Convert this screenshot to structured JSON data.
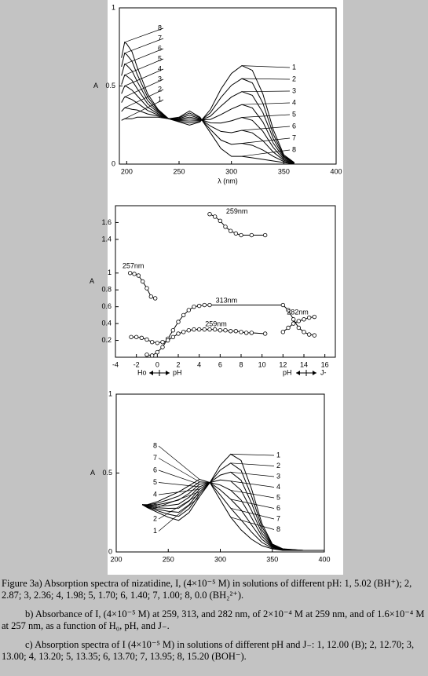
{
  "chart_data": [
    {
      "type": "line",
      "ylabel": "A",
      "xlabel": "λ (nm)",
      "color": "#000000",
      "xlim": [
        193,
        400
      ],
      "ylim": [
        0,
        1
      ],
      "xticks": [
        200,
        250,
        300,
        350,
        400
      ],
      "yticks": [
        0,
        0.5,
        1
      ],
      "x": [
        195,
        198,
        200,
        205,
        210,
        220,
        230,
        240,
        250,
        260,
        270,
        280,
        290,
        300,
        310,
        320,
        330,
        340,
        350,
        360
      ],
      "series": [
        {
          "name": "1",
          "values": [
            0.28,
            0.29,
            0.29,
            0.29,
            0.3,
            0.3,
            0.3,
            0.29,
            0.27,
            0.25,
            0.27,
            0.35,
            0.48,
            0.58,
            0.63,
            0.6,
            0.45,
            0.22,
            0.06,
            0.01
          ]
        },
        {
          "name": "2",
          "values": [
            0.337,
            0.36,
            0.359,
            0.351,
            0.346,
            0.321,
            0.307,
            0.29,
            0.274,
            0.263,
            0.274,
            0.329,
            0.426,
            0.504,
            0.547,
            0.52,
            0.39,
            0.191,
            0.053,
            0.009
          ]
        },
        {
          "name": "3",
          "values": [
            0.394,
            0.43,
            0.427,
            0.413,
            0.391,
            0.343,
            0.314,
            0.29,
            0.279,
            0.276,
            0.279,
            0.307,
            0.371,
            0.429,
            0.464,
            0.44,
            0.33,
            0.163,
            0.046,
            0.007
          ]
        },
        {
          "name": "4",
          "values": [
            0.451,
            0.5,
            0.496,
            0.474,
            0.437,
            0.364,
            0.321,
            0.29,
            0.283,
            0.289,
            0.283,
            0.286,
            0.317,
            0.353,
            0.381,
            0.36,
            0.27,
            0.134,
            0.039,
            0.006
          ]
        },
        {
          "name": "5",
          "values": [
            0.509,
            0.57,
            0.564,
            0.536,
            0.483,
            0.386,
            0.329,
            0.29,
            0.287,
            0.301,
            0.287,
            0.264,
            0.263,
            0.277,
            0.299,
            0.28,
            0.21,
            0.106,
            0.031,
            0.004
          ]
        },
        {
          "name": "6",
          "values": [
            0.566,
            0.64,
            0.633,
            0.597,
            0.529,
            0.407,
            0.336,
            0.29,
            0.291,
            0.314,
            0.291,
            0.243,
            0.209,
            0.201,
            0.216,
            0.2,
            0.15,
            0.077,
            0.024,
            0.003
          ]
        },
        {
          "name": "7",
          "values": [
            0.623,
            0.71,
            0.701,
            0.659,
            0.574,
            0.429,
            0.343,
            0.29,
            0.296,
            0.327,
            0.296,
            0.221,
            0.154,
            0.126,
            0.133,
            0.12,
            0.09,
            0.049,
            0.017,
            0.001
          ]
        },
        {
          "name": "8",
          "values": [
            0.68,
            0.78,
            0.77,
            0.72,
            0.62,
            0.45,
            0.35,
            0.29,
            0.3,
            0.34,
            0.3,
            0.2,
            0.1,
            0.05,
            0.05,
            0.04,
            0.03,
            0.02,
            0.01,
            0
          ]
        }
      ]
    },
    {
      "type": "scatter",
      "ylabel": "A",
      "color": "#000000",
      "connect": true,
      "xlim": [
        -4,
        17
      ],
      "ylim": [
        0,
        1.8
      ],
      "xticks": [
        -4,
        -2,
        0,
        2,
        4,
        6,
        8,
        10,
        12,
        14,
        16
      ],
      "yticks": [
        0.2,
        0.4,
        0.6,
        0.8,
        1.0,
        1.4,
        1.6
      ],
      "annotations": [
        "Ho",
        "pH",
        "pH",
        "J-"
      ],
      "series": [
        {
          "name": "257nm",
          "x": [
            -2.6,
            -2.2,
            -1.8,
            -1.4,
            -1.0,
            -0.6,
            -0.2
          ],
          "values": [
            1.0,
            0.99,
            0.97,
            0.9,
            0.82,
            0.72,
            0.7
          ]
        },
        {
          "name": "259nm",
          "x": [
            5,
            5.5,
            6,
            6.5,
            7,
            7.5,
            8,
            9,
            10.3
          ],
          "values": [
            1.7,
            1.67,
            1.62,
            1.55,
            1.5,
            1.47,
            1.45,
            1.45,
            1.45
          ]
        },
        {
          "name": "313nm",
          "x": [
            -1.0,
            -0.5,
            0,
            0.5,
            1,
            1.5,
            2,
            2.5,
            3,
            3.5,
            4,
            4.5,
            5,
            12,
            12.5,
            13,
            13.5,
            14,
            14.5,
            15
          ],
          "values": [
            0.03,
            0.02,
            0.06,
            0.12,
            0.22,
            0.32,
            0.42,
            0.5,
            0.56,
            0.6,
            0.61,
            0.62,
            0.62,
            0.62,
            0.56,
            0.45,
            0.35,
            0.3,
            0.27,
            0.26
          ]
        },
        {
          "name": "259nm",
          "x": [
            -2.5,
            -2,
            -1.5,
            -1,
            -0.5,
            0,
            0.5,
            1,
            1.5,
            2,
            2.5,
            3,
            3.5,
            4,
            4.5,
            5,
            5.5,
            6,
            6.5,
            7,
            7.5,
            8,
            8.5,
            9,
            10.3
          ],
          "values": [
            0.24,
            0.24,
            0.23,
            0.21,
            0.18,
            0.17,
            0.18,
            0.2,
            0.24,
            0.28,
            0.3,
            0.32,
            0.33,
            0.33,
            0.33,
            0.33,
            0.33,
            0.32,
            0.32,
            0.31,
            0.31,
            0.3,
            0.29,
            0.29,
            0.28
          ]
        },
        {
          "name": "282nm",
          "x": [
            12,
            12.5,
            13,
            13.5,
            14,
            14.5,
            15
          ],
          "values": [
            0.3,
            0.35,
            0.4,
            0.43,
            0.45,
            0.47,
            0.48
          ]
        }
      ]
    },
    {
      "type": "line",
      "ylabel": "A",
      "color": "#000000",
      "xlim": [
        200,
        400
      ],
      "ylim": [
        0,
        1
      ],
      "xticks": [
        200,
        250,
        300,
        350,
        400
      ],
      "yticks": [
        0,
        0.5,
        1
      ],
      "x": [
        225,
        230,
        240,
        250,
        260,
        270,
        280,
        290,
        300,
        310,
        320,
        330,
        340,
        350,
        360,
        380,
        400
      ],
      "series": [
        {
          "name": "1",
          "values": [
            0.3,
            0.28,
            0.25,
            0.22,
            0.2,
            0.25,
            0.35,
            0.44,
            0.55,
            0.62,
            0.58,
            0.4,
            0.18,
            0.05,
            0.02,
            0.01,
            0.01
          ]
        },
        {
          "name": "2",
          "values": [
            0.3,
            0.283,
            0.26,
            0.239,
            0.226,
            0.274,
            0.366,
            0.44,
            0.519,
            0.563,
            0.517,
            0.354,
            0.16,
            0.046,
            0.019,
            0.01,
            0.01
          ]
        },
        {
          "name": "3",
          "values": [
            0.3,
            0.286,
            0.27,
            0.257,
            0.251,
            0.299,
            0.381,
            0.44,
            0.487,
            0.506,
            0.454,
            0.309,
            0.14,
            0.041,
            0.017,
            0.01,
            0.01
          ]
        },
        {
          "name": "4",
          "values": [
            0.3,
            0.289,
            0.28,
            0.276,
            0.277,
            0.323,
            0.397,
            0.44,
            0.456,
            0.449,
            0.391,
            0.263,
            0.12,
            0.037,
            0.016,
            0.01,
            0.01
          ]
        },
        {
          "name": "5",
          "values": [
            0.3,
            0.291,
            0.29,
            0.294,
            0.303,
            0.347,
            0.413,
            0.44,
            0.424,
            0.391,
            0.329,
            0.217,
            0.1,
            0.033,
            0.014,
            0.01,
            0.01
          ]
        },
        {
          "name": "6",
          "values": [
            0.3,
            0.294,
            0.3,
            0.313,
            0.329,
            0.371,
            0.429,
            0.44,
            0.393,
            0.334,
            0.266,
            0.171,
            0.08,
            0.029,
            0.013,
            0.01,
            0.01
          ]
        },
        {
          "name": "7",
          "values": [
            0.3,
            0.297,
            0.31,
            0.331,
            0.354,
            0.396,
            0.444,
            0.44,
            0.361,
            0.277,
            0.203,
            0.126,
            0.06,
            0.024,
            0.011,
            0.01,
            0.01
          ]
        },
        {
          "name": "8",
          "values": [
            0.3,
            0.3,
            0.32,
            0.35,
            0.38,
            0.42,
            0.46,
            0.44,
            0.33,
            0.22,
            0.14,
            0.08,
            0.04,
            0.02,
            0.01,
            0.01,
            0.01
          ]
        }
      ]
    }
  ],
  "caption": {
    "a": "Figure 3a) Absorption spectra of nizatidine, I, (4×10⁻⁵ M) in solutions of different pH: 1, 5.02 (BH⁺); 2, 2.87; 3, 2.36; 4, 1.98; 5, 1.70; 6, 1.40; 7, 1.00; 8, 0.0 (BH₂²⁺).",
    "b": "b) Absorbance of I, (4×10⁻⁵ M) at 259, 313, and 282 nm, of 2×10⁻⁴ M at 259 nm, and of 1.6×10⁻⁴ M at 257 nm, as a function of H₀, pH, and J₋.",
    "c": "c) Absorption spectra of I (4×10⁻⁵ M) in solutions of different pH and J₋: 1, 12.00 (B); 2, 12.70; 3, 13.00; 4, 13.20; 5, 13.35; 6, 13.70; 7, 13.95; 8, 15.20 (BOH⁻)."
  }
}
